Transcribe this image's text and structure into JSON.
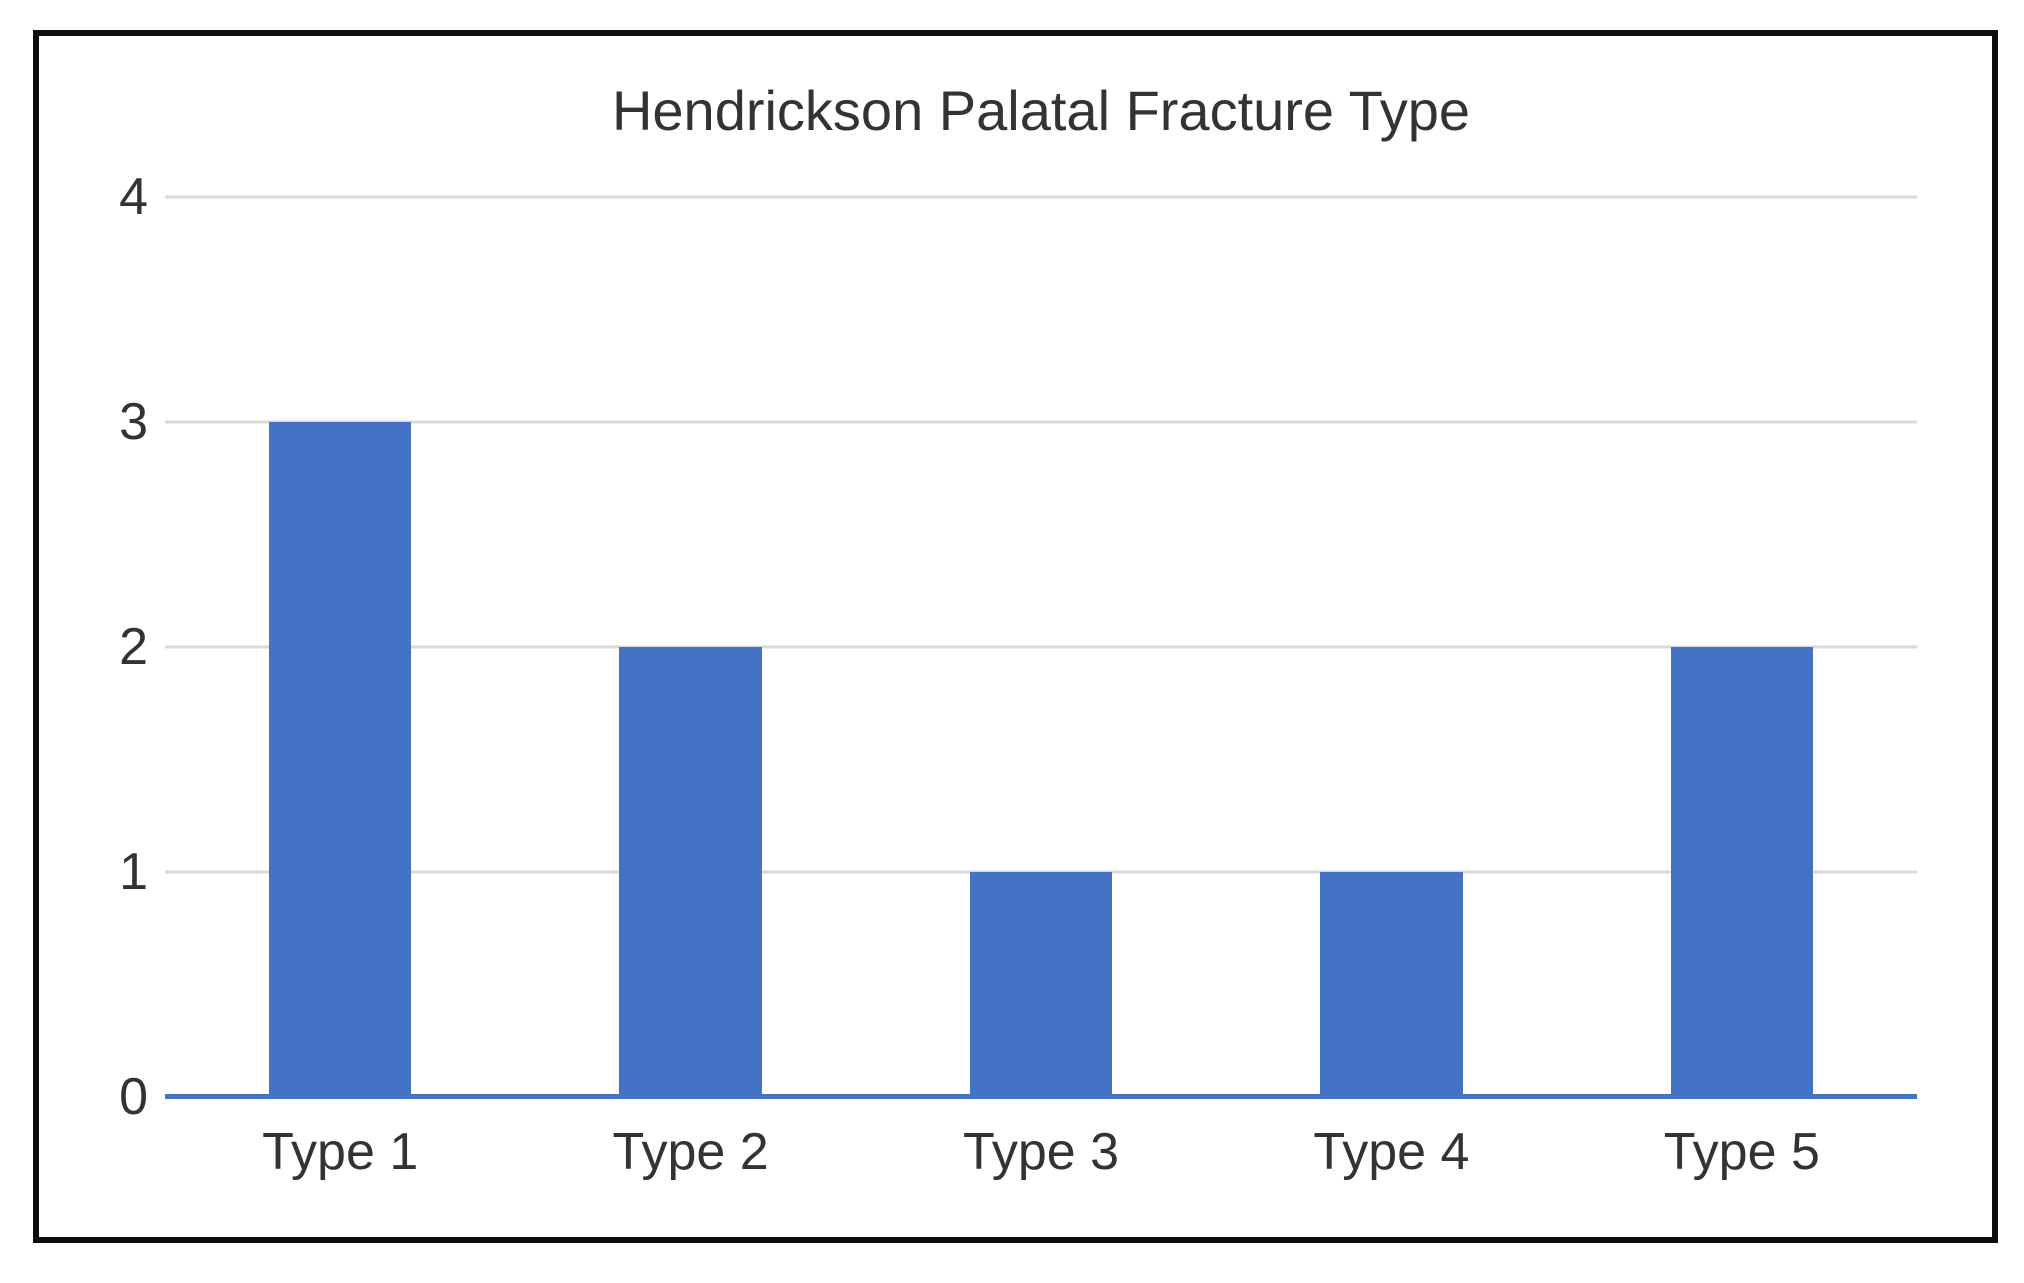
{
  "figure": {
    "border_color": "#0d0d0d",
    "background_color": "#ffffff"
  },
  "chart_data": {
    "type": "bar",
    "title": "Hendrickson Palatal Fracture Type",
    "categories": [
      "Type 1",
      "Type 2",
      "Type 3",
      "Type 4",
      "Type 5"
    ],
    "values": [
      3,
      2,
      1,
      1,
      2
    ],
    "xlabel": "",
    "ylabel": "",
    "ylim": [
      0,
      4
    ],
    "yticks": [
      0,
      1,
      2,
      3,
      4
    ],
    "grid": "horizontal",
    "legend_position": "none",
    "bar_color": "#4472c4",
    "axis_line_color": "#4472c4",
    "gridline_color": "#d9d9d9",
    "text_color": "#333333"
  }
}
